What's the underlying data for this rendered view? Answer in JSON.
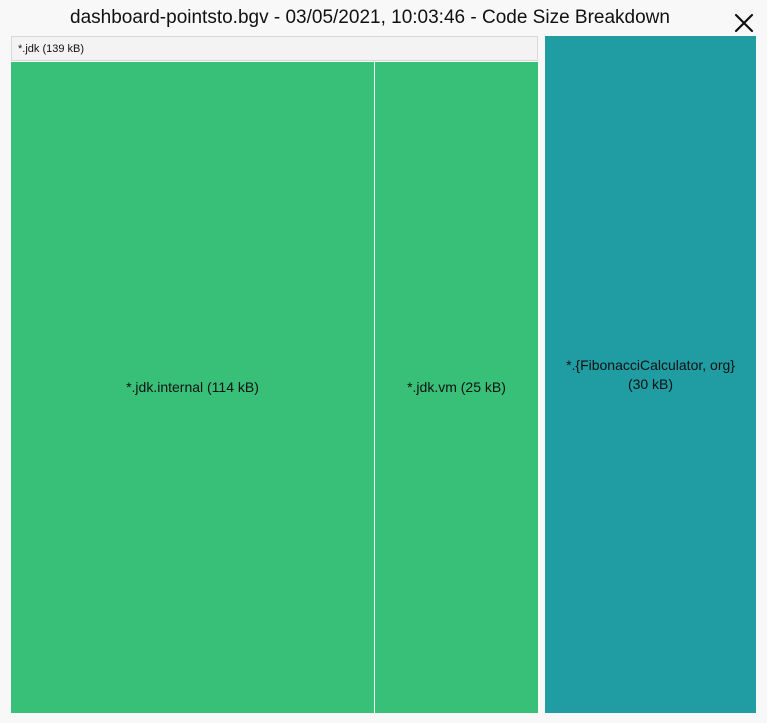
{
  "window": {
    "title": "dashboard-pointsto.bgv - 03/05/2021, 10:03:46 - Code Size Breakdown"
  },
  "close_icon": "close-icon",
  "treemap": {
    "group": {
      "label": "*.jdk (139 kB)",
      "size_kb": 139
    },
    "cells": [
      {
        "label": "*.jdk.internal (114 kB)",
        "size_kb": 114,
        "color": "#38c078"
      },
      {
        "label": "*.jdk.vm (25 kB)",
        "size_kb": 25,
        "color": "#38c078"
      },
      {
        "label_line1": "*.{FibonacciCalculator, org}",
        "label_line2": "(30 kB)",
        "size_kb": 30,
        "color": "#209ca3"
      }
    ]
  },
  "colors": {
    "jdk_green": "#38c078",
    "other_teal": "#209ca3",
    "background": "#f8f8f8"
  }
}
